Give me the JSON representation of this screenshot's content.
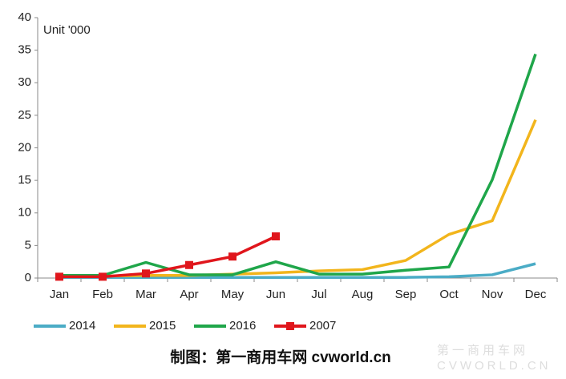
{
  "chart_data": {
    "type": "line",
    "annotation": "Unit '000",
    "footer": "制图：第一商用车网 cvworld.cn",
    "watermark": [
      "第一商用车网",
      "CVWORLD.CN"
    ],
    "categories": [
      "Jan",
      "Feb",
      "Mar",
      "Apr",
      "May",
      "Jun",
      "Jul",
      "Aug",
      "Sep",
      "Oct",
      "Nov",
      "Dec"
    ],
    "ylim": [
      0,
      40
    ],
    "yticks": [
      0,
      5,
      10,
      15,
      20,
      25,
      30,
      35,
      40
    ],
    "legend": "bottom",
    "series": [
      {
        "name": "2014",
        "color": "#4bacc6",
        "values": [
          0.1,
          0.1,
          0.1,
          0.1,
          0.1,
          0.1,
          0.1,
          0.1,
          0.1,
          0.2,
          0.5,
          2.2
        ]
      },
      {
        "name": "2015",
        "color": "#f2b51c",
        "values": [
          0.3,
          0.3,
          0.4,
          0.4,
          0.6,
          0.8,
          1.1,
          1.3,
          2.7,
          6.7,
          8.8,
          24.3
        ]
      },
      {
        "name": "2016",
        "color": "#1fa64a",
        "values": [
          0.4,
          0.4,
          2.4,
          0.5,
          0.5,
          2.5,
          0.6,
          0.6,
          1.2,
          1.7,
          15.1,
          34.4
        ]
      },
      {
        "name": "2007",
        "color": "#e0161c",
        "marker": "square",
        "values": [
          0.2,
          0.2,
          0.7,
          2.0,
          3.3,
          6.4,
          null,
          null,
          null,
          null,
          null,
          null
        ]
      }
    ]
  }
}
